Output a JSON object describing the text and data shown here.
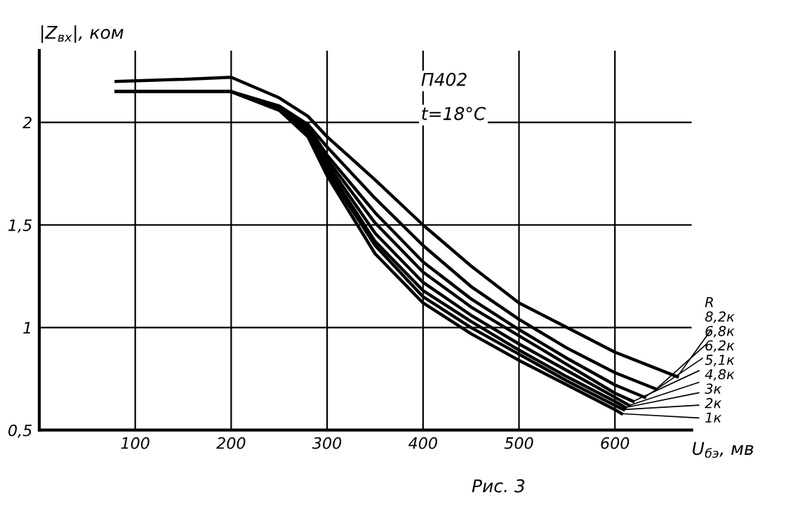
{
  "chart_data": {
    "type": "line",
    "title": "П402",
    "subtitle": "t=18°C",
    "xlabel": "U$_{бэ}$, мв",
    "ylabel": "|Z$_{вх}$|, ком",
    "annotations": [
      "R",
      "Рис. 3"
    ],
    "xlim": [
      0,
      680
    ],
    "ylim": [
      0.5,
      2.35
    ],
    "xticks": [
      100,
      200,
      300,
      400,
      500,
      600
    ],
    "yticks": [
      {
        "value": 0.5,
        "label": "0,5"
      },
      1,
      {
        "value": 1.5,
        "label": "1,5"
      },
      2
    ],
    "grid": true,
    "marker": "none",
    "line_style": "solid",
    "series": [
      {
        "name": "1к",
        "color": "#000000",
        "x": [
          80,
          150,
          200,
          250,
          280,
          300,
          350,
          400,
          450,
          500,
          550,
          600,
          607
        ],
        "values": [
          2.15,
          2.15,
          2.15,
          2.06,
          1.93,
          1.74,
          1.36,
          1.12,
          0.97,
          0.84,
          0.72,
          0.6,
          0.58
        ]
      },
      {
        "name": "2к",
        "color": "#000000",
        "x": [
          80,
          150,
          200,
          250,
          280,
          300,
          350,
          400,
          450,
          500,
          550,
          600,
          609
        ],
        "values": [
          2.15,
          2.15,
          2.15,
          2.06,
          1.94,
          1.76,
          1.4,
          1.15,
          1.0,
          0.87,
          0.74,
          0.62,
          0.6
        ]
      },
      {
        "name": "3к",
        "color": "#000000",
        "x": [
          80,
          150,
          200,
          250,
          280,
          300,
          350,
          400,
          450,
          500,
          550,
          600,
          611
        ],
        "values": [
          2.15,
          2.15,
          2.15,
          2.06,
          1.95,
          1.78,
          1.42,
          1.18,
          1.03,
          0.89,
          0.76,
          0.64,
          0.61
        ]
      },
      {
        "name": "4,8к",
        "color": "#000000",
        "x": [
          80,
          150,
          200,
          250,
          280,
          300,
          350,
          400,
          450,
          500,
          550,
          600,
          615
        ],
        "values": [
          2.15,
          2.15,
          2.15,
          2.06,
          1.96,
          1.8,
          1.46,
          1.22,
          1.06,
          0.92,
          0.79,
          0.66,
          0.62
        ]
      },
      {
        "name": "5,1к",
        "color": "#000000",
        "x": [
          80,
          150,
          200,
          250,
          280,
          300,
          350,
          400,
          450,
          500,
          550,
          600,
          619
        ],
        "values": [
          2.15,
          2.15,
          2.15,
          2.07,
          1.97,
          1.82,
          1.51,
          1.27,
          1.1,
          0.96,
          0.82,
          0.68,
          0.64
        ]
      },
      {
        "name": "6,2к",
        "color": "#000000",
        "x": [
          80,
          150,
          200,
          250,
          280,
          300,
          350,
          400,
          450,
          500,
          550,
          600,
          631
        ],
        "values": [
          2.15,
          2.15,
          2.15,
          2.07,
          1.98,
          1.84,
          1.56,
          1.32,
          1.14,
          0.99,
          0.85,
          0.72,
          0.66
        ]
      },
      {
        "name": "6,8к",
        "color": "#000000",
        "x": [
          80,
          150,
          200,
          250,
          280,
          300,
          350,
          400,
          450,
          500,
          550,
          600,
          643
        ],
        "values": [
          2.15,
          2.15,
          2.15,
          2.08,
          1.99,
          1.88,
          1.63,
          1.4,
          1.2,
          1.04,
          0.9,
          0.78,
          0.7
        ]
      },
      {
        "name": "8,2к",
        "color": "#000000",
        "x": [
          80,
          150,
          200,
          250,
          280,
          300,
          350,
          400,
          450,
          500,
          550,
          600,
          665
        ],
        "values": [
          2.2,
          2.21,
          2.22,
          2.12,
          2.03,
          1.93,
          1.72,
          1.5,
          1.3,
          1.12,
          1.0,
          0.88,
          0.76
        ]
      }
    ]
  }
}
